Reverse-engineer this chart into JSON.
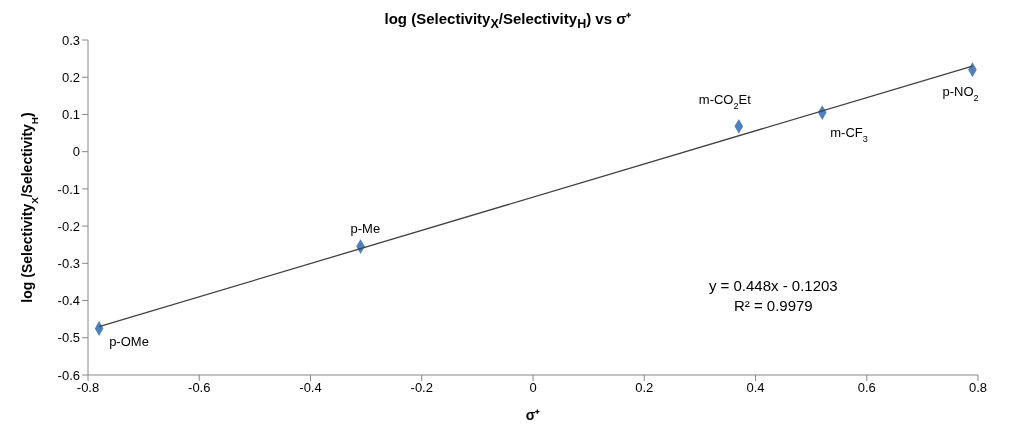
{
  "chart_data": {
    "type": "scatter",
    "title": "log (Selectivity$_{X}$/Selectivity$_{H}$) vs σ⁺",
    "xlabel": "σ⁺",
    "ylabel": "log (Selectivity$_{X}$/Selectivity$_{H}$)",
    "x": [
      -0.78,
      -0.31,
      0.37,
      0.52,
      0.79
    ],
    "series": [
      {
        "color": "#4f81bd",
        "marker": "diamond",
        "values": [
          -0.475,
          -0.255,
          0.068,
          0.105,
          0.22
        ]
      },
      {
        "type": "line",
        "color": "#404040",
        "marker": "none",
        "x": [
          -0.78,
          0.79
        ],
        "values": [
          -0.47,
          0.23
        ]
      }
    ],
    "xlim": [
      -0.8,
      0.8
    ],
    "xticks": [
      -0.8,
      -0.6,
      -0.4,
      -0.2,
      0,
      0.2,
      0.4,
      0.6,
      0.8
    ],
    "ylim": [
      -0.6,
      0.3
    ],
    "yticks": [
      -0.6,
      -0.5,
      -0.4,
      -0.3,
      -0.2,
      -0.1,
      0,
      0.1,
      0.2,
      0.3
    ],
    "annotations": [
      {
        "text": "p-OMe",
        "x": -0.78,
        "y": -0.475
      },
      {
        "text": "p-Me",
        "x": -0.31,
        "y": -0.255
      },
      {
        "text": "m-CO$_{2}$Et",
        "x": 0.37,
        "y": 0.068
      },
      {
        "text": "m-CF$_{3}$",
        "x": 0.52,
        "y": 0.105
      },
      {
        "text": "p-NO$_{2}$",
        "x": 0.79,
        "y": 0.22
      },
      "y = 0.448x - 0.1203",
      "R² = 0.9979"
    ],
    "legend": false
  }
}
